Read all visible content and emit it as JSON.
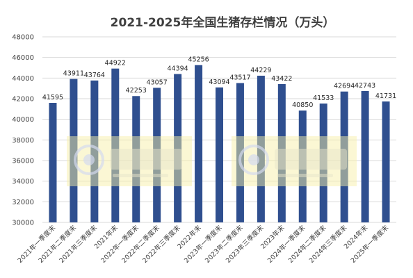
{
  "chart_data": {
    "type": "bar",
    "title": "2021-2025年全国生猪存栏情况（万头）",
    "xlabel": "",
    "ylabel": "",
    "ylim": [
      30000,
      48000
    ],
    "yticks": [
      30000,
      32000,
      34000,
      36000,
      38000,
      40000,
      42000,
      44000,
      46000,
      48000
    ],
    "grid": true,
    "legend": "none",
    "bar_color": "#2f4f8f",
    "categories": [
      "2021年一季度末",
      "2021年二季度末",
      "2021年三季度末",
      "2021年末",
      "2022年一季度末",
      "2022年二季度末",
      "2022年三季度末",
      "2022年末",
      "2023年一季度末",
      "2023年二季度末",
      "2023年三季度末",
      "2023年末",
      "2024年一季度末",
      "2024年二季度末",
      "2024年三季度末",
      "2024年末",
      "2025年一季度末"
    ],
    "values": [
      41595,
      43911,
      43764,
      44922,
      42253,
      43057,
      44394,
      45256,
      43094,
      43517,
      44229,
      43422,
      40850,
      41533,
      42694,
      42743,
      41731
    ],
    "data_labels": [
      "41595",
      "43911",
      "43764",
      "44922",
      "42253",
      "43057",
      "44394",
      "45256",
      "43094",
      "43517",
      "44229",
      "43422",
      "40850",
      "41533",
      "42694",
      "42743",
      "41731"
    ]
  },
  "watermark": {
    "text": "大畜牧",
    "subtext": "daxumu.com",
    "color": "#f5efa8"
  }
}
